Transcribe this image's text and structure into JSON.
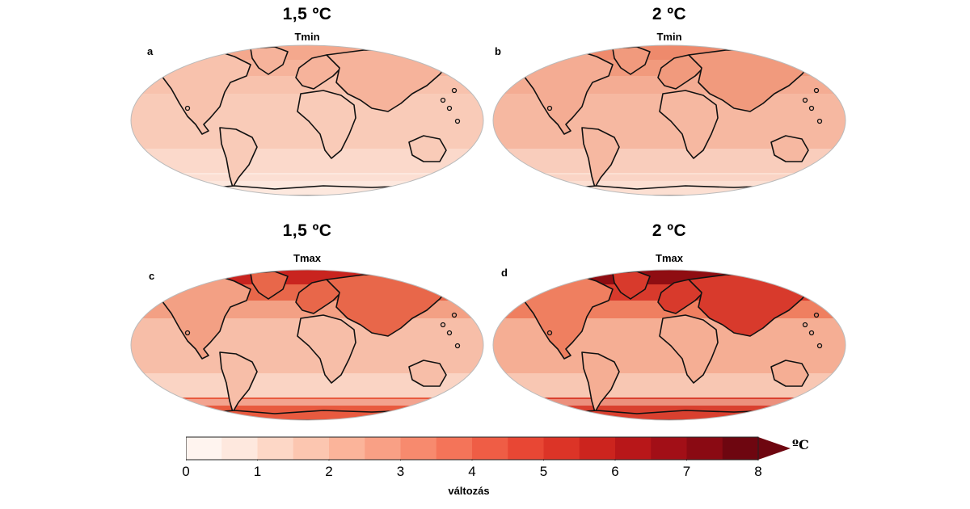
{
  "panels": [
    {
      "letter": "a",
      "heading": "1,5 ºC",
      "subtitle": "Tmin",
      "arctic": "#f4a88d",
      "eurasia": "#f6b39b",
      "midlat": "#f8c2ad",
      "tropics": "#f9cbb8",
      "ocean": "#fbd9cb",
      "southern": "#fde8de"
    },
    {
      "letter": "b",
      "heading": "2 ºC",
      "subtitle": "Tmin",
      "arctic": "#ee8a6c",
      "eurasia": "#f19a7d",
      "midlat": "#f4ac93",
      "tropics": "#f6b8a1",
      "ocean": "#f9cdbc",
      "southern": "#fcdfd2"
    },
    {
      "letter": "c",
      "heading": "1,5 ºC",
      "subtitle": "Tmax",
      "arctic": "#c9241f",
      "eurasia": "#e8674a",
      "midlat": "#f3a084",
      "tropics": "#f7bea8",
      "ocean": "#fad4c4",
      "southern": "#e85a3f"
    },
    {
      "letter": "d",
      "heading": "2 ºC",
      "subtitle": "Tmax",
      "arctic": "#8f0d12",
      "eurasia": "#d83a2c",
      "midlat": "#ef7f60",
      "tropics": "#f5ae94",
      "ocean": "#f8c7b3",
      "southern": "#d9402f"
    }
  ],
  "colorbar": {
    "ticks": [
      "0",
      "1",
      "2",
      "3",
      "4",
      "5",
      "6",
      "7",
      "8"
    ],
    "unit": "ºC",
    "label": "változás",
    "colors": [
      "#fff4ef",
      "#fee8de",
      "#fdd7c6",
      "#fcc6b0",
      "#fbb49a",
      "#f9a085",
      "#f78a6e",
      "#f47459",
      "#ef5d45",
      "#e84734",
      "#dc3427",
      "#cc241e",
      "#b81719",
      "#a20f17",
      "#8a0a13",
      "#6e0610"
    ]
  }
}
